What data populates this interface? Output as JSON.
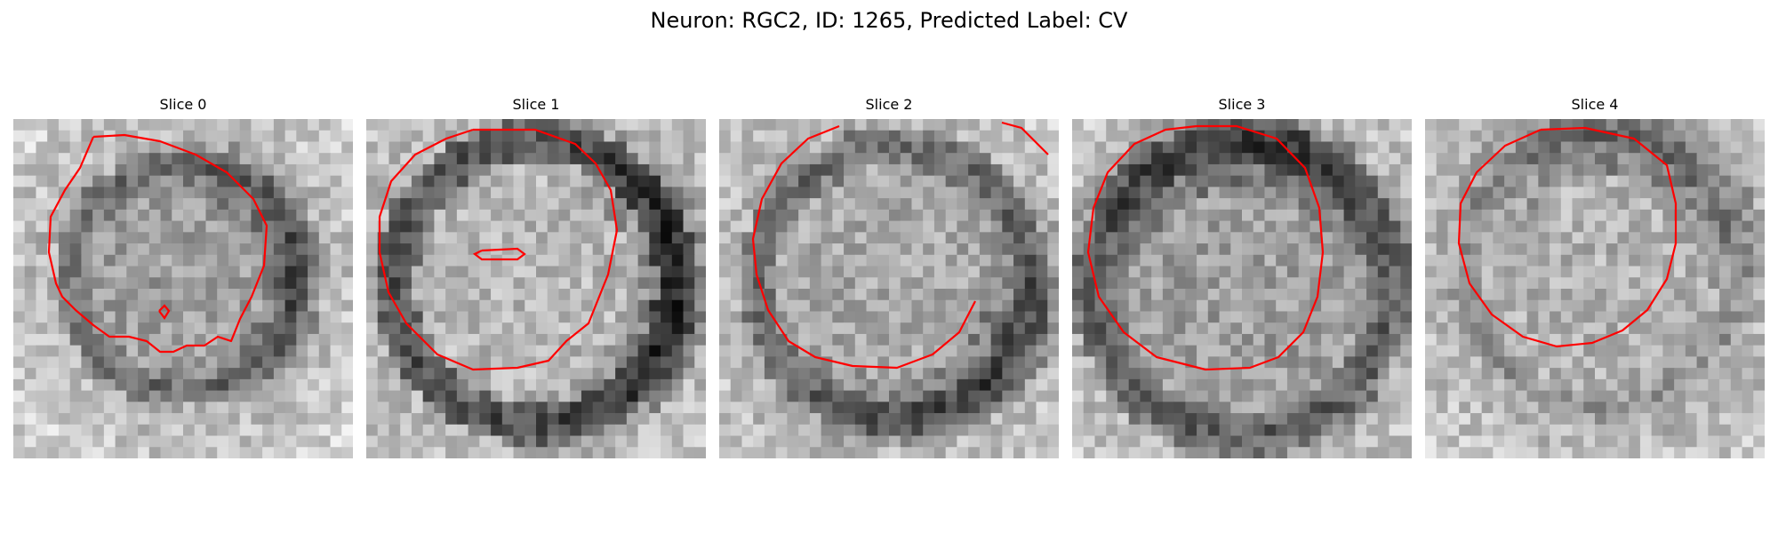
{
  "figure": {
    "title": "Neuron: RGC2, ID: 1265, Predicted Label: CV",
    "contour_color": "#ff0000"
  },
  "panels": [
    {
      "title": "Slice 0"
    },
    {
      "title": "Slice 1"
    },
    {
      "title": "Slice 2"
    },
    {
      "title": "Slice 3"
    },
    {
      "title": "Slice 4"
    }
  ]
}
